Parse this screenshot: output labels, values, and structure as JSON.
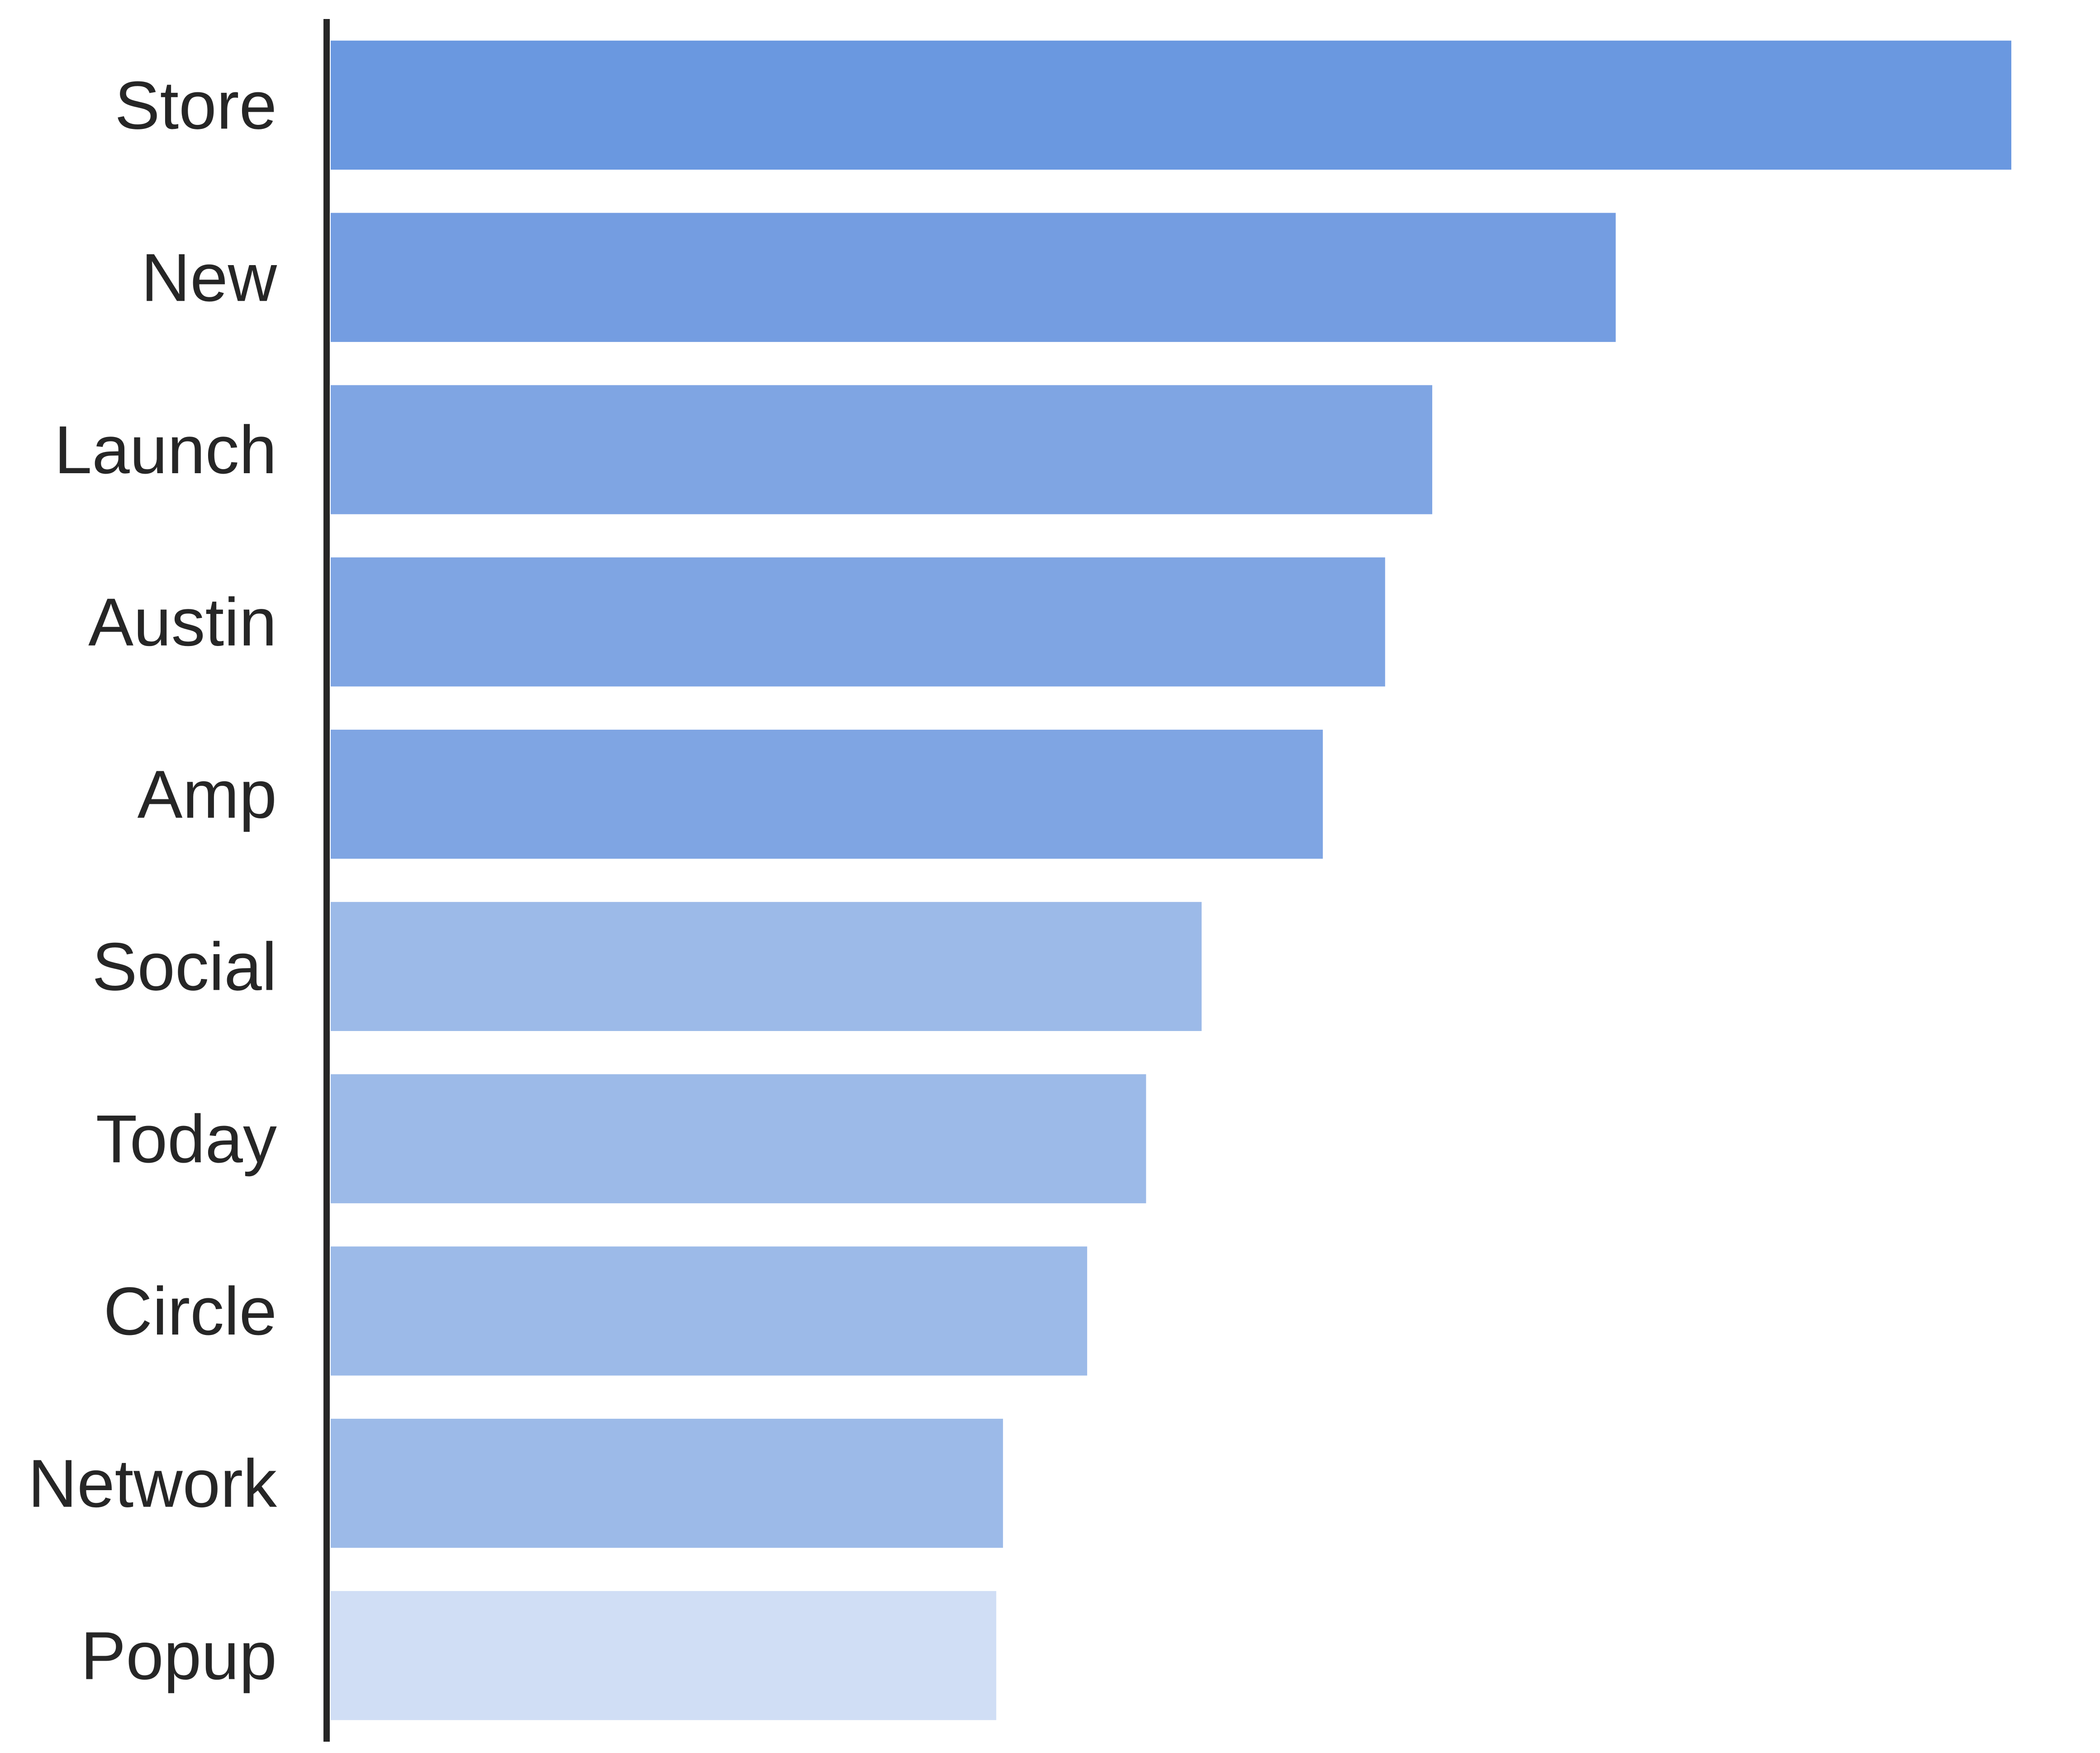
{
  "chart_data": {
    "type": "bar",
    "orientation": "horizontal",
    "categories": [
      "Store",
      "New",
      "Launch",
      "Austin",
      "Amp",
      "Social",
      "Today",
      "Circle",
      "Network",
      "Popup"
    ],
    "values": [
      100,
      76.5,
      65.6,
      62.8,
      59.1,
      51.9,
      48.6,
      45.1,
      40.1,
      39.7
    ],
    "bar_colors": [
      "#6a98e0",
      "#749de1",
      "#7fa5e3",
      "#7fa5e3",
      "#7fa5e3",
      "#9cbae8",
      "#9cbae8",
      "#9cbae8",
      "#9cbae8",
      "#d0def5"
    ],
    "title": "",
    "xlabel": "",
    "ylabel": "",
    "xlim": [
      0,
      105
    ],
    "grid": false,
    "legend": "none",
    "axis_color": "#262626"
  }
}
